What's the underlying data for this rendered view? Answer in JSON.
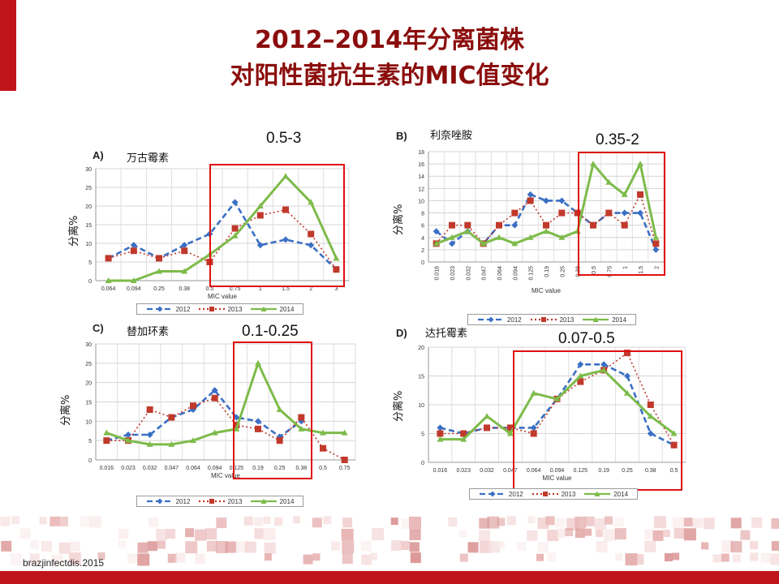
{
  "slide": {
    "title_line1": "2012–2014年分离菌株",
    "title_line2": "对阳性菌抗生素的MIC值变化",
    "source": "brazjinfectdis.2015"
  },
  "colors": {
    "accent": "#c0141b",
    "title": "#8b0d0d",
    "box": "#e01010",
    "s2012": "#3a6fc4",
    "s2013": "#c0392b",
    "s2014": "#7dbb4a"
  },
  "chart_data": [
    {
      "id": "A",
      "type": "line",
      "panel_label": "A)",
      "drug": "万古霉素",
      "ylabel": "分离%",
      "xlabel": "MIC value",
      "range_label": "0.5-3",
      "x": [
        "0.064",
        "0.094",
        "0.25",
        "0.38",
        "0.5",
        "0.75",
        "1",
        "1.5",
        "2",
        "3"
      ],
      "ylim": [
        0,
        30
      ],
      "yticks": [
        0,
        5,
        10,
        15,
        20,
        25,
        30
      ],
      "highlight": [
        4,
        9
      ],
      "series": [
        {
          "name": "2012",
          "values": [
            6,
            9.5,
            6,
            9.5,
            12.5,
            21,
            9.5,
            11,
            9.5,
            3
          ]
        },
        {
          "name": "2013",
          "values": [
            6,
            8,
            6,
            8,
            5,
            14,
            17.5,
            19,
            12.5,
            3
          ]
        },
        {
          "name": "2014",
          "values": [
            0,
            0,
            2.5,
            2.5,
            7,
            12,
            20,
            28,
            21,
            6
          ]
        }
      ]
    },
    {
      "id": "B",
      "type": "line",
      "panel_label": "B)",
      "drug": "利奈唑胺",
      "ylabel": "分离%",
      "xlabel": "MIC value",
      "range_label": "0.35-2",
      "x": [
        "0.016",
        "0.023",
        "0.032",
        "0.047",
        "0.064",
        "0.094",
        "0.125",
        "0.19",
        "0.25",
        "0.38",
        "0.5",
        "0.75",
        "1",
        "1.5",
        "2"
      ],
      "ylim": [
        0,
        18
      ],
      "yticks": [
        0,
        2,
        4,
        6,
        8,
        10,
        12,
        14,
        16,
        18
      ],
      "highlight": [
        9,
        14
      ],
      "series": [
        {
          "name": "2012",
          "values": [
            5,
            3,
            5,
            3,
            6,
            6,
            11,
            10,
            10,
            8,
            6,
            8,
            8,
            8,
            2
          ]
        },
        {
          "name": "2013",
          "values": [
            3,
            6,
            6,
            3,
            6,
            8,
            10,
            6,
            8,
            8,
            6,
            8,
            6,
            11,
            3
          ]
        },
        {
          "name": "2014",
          "values": [
            3,
            4,
            5,
            3,
            4,
            3,
            4,
            5,
            4,
            5,
            16,
            13,
            11,
            16,
            4
          ]
        }
      ]
    },
    {
      "id": "C",
      "type": "line",
      "panel_label": "C)",
      "drug": "替加环素",
      "ylabel": "分离%",
      "xlabel": "MIC value",
      "range_label": "0.1-0.25",
      "x": [
        "0.016",
        "0.023",
        "0.032",
        "0.047",
        "0.064",
        "0.094",
        "0.125",
        "0.19",
        "0.25",
        "0.38",
        "0.5",
        "0.75"
      ],
      "ylim": [
        0,
        30
      ],
      "yticks": [
        0,
        5,
        10,
        15,
        20,
        25,
        30
      ],
      "highlight": [
        6,
        9
      ],
      "series": [
        {
          "name": "2012",
          "values": [
            5,
            6.5,
            6.5,
            11,
            13,
            18,
            11,
            10,
            6,
            10,
            null,
            null
          ]
        },
        {
          "name": "2013",
          "values": [
            5,
            5,
            13,
            11,
            14,
            16,
            9,
            8,
            5,
            11,
            3,
            0
          ]
        },
        {
          "name": "2014",
          "values": [
            7,
            5,
            4,
            4,
            5,
            7,
            8,
            25,
            13,
            8,
            7,
            7
          ]
        }
      ]
    },
    {
      "id": "D",
      "type": "line",
      "panel_label": "D)",
      "drug": "达托霉素",
      "ylabel": "分离%",
      "xlabel": "MIC value",
      "range_label": "0.07-0.5",
      "x": [
        "0.016",
        "0.023",
        "0.032",
        "0.047",
        "0.064",
        "0.094",
        "0.125",
        "0.19",
        "0.25",
        "0.38",
        "0.5"
      ],
      "ylim": [
        0,
        20
      ],
      "yticks": [
        0,
        5,
        10,
        15,
        20
      ],
      "highlight": [
        3,
        10
      ],
      "series": [
        {
          "name": "2012",
          "values": [
            6,
            5,
            6,
            6,
            6,
            11,
            17,
            17,
            15,
            5,
            3
          ]
        },
        {
          "name": "2013",
          "values": [
            5,
            5,
            6,
            6,
            5,
            11,
            14,
            16,
            19,
            10,
            3
          ]
        },
        {
          "name": "2014",
          "values": [
            4,
            4,
            8,
            5,
            12,
            11,
            15,
            16,
            12,
            8,
            5
          ]
        }
      ]
    }
  ]
}
